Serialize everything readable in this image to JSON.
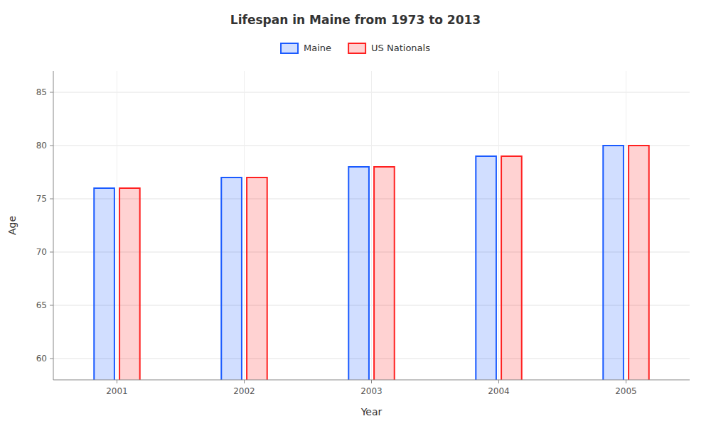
{
  "chart_data": {
    "type": "bar",
    "title": "Lifespan in Maine from 1973 to 2013",
    "x_label": "Year",
    "y_label": "Age",
    "categories": [
      "2001",
      "2002",
      "2003",
      "2004",
      "2005"
    ],
    "series": [
      {
        "name": "Maine",
        "color": "#1a5aff",
        "values": [
          76,
          77,
          78,
          79,
          80
        ]
      },
      {
        "name": "US Nationals",
        "color": "#ff2020",
        "values": [
          76,
          77,
          78,
          79,
          80
        ]
      }
    ],
    "ylim": [
      58,
      87
    ],
    "yticks": [
      60,
      65,
      70,
      75,
      80,
      85
    ],
    "grid": true,
    "legend": "top"
  }
}
